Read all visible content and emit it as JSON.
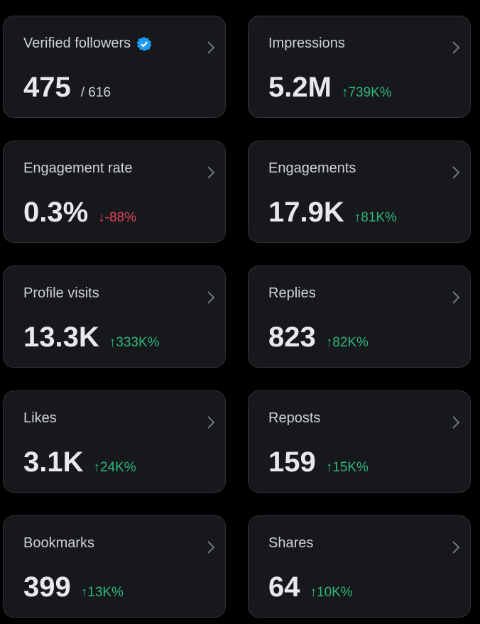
{
  "cards": [
    {
      "label": "Verified followers",
      "value": "475",
      "total": "/ 616",
      "verified": true
    },
    {
      "label": "Impressions",
      "value": "5.2M",
      "change": "↑739K%",
      "color": "#2fb67a"
    },
    {
      "label": "Engagement rate",
      "value": "0.3%",
      "change": "↓-88%",
      "color": "#e0445a"
    },
    {
      "label": "Engagements",
      "value": "17.9K",
      "change": "↑81K%",
      "color": "#2fb67a"
    },
    {
      "label": "Profile visits",
      "value": "13.3K",
      "change": "↑333K%",
      "color": "#2fb67a"
    },
    {
      "label": "Replies",
      "value": "823",
      "change": "↑82K%",
      "color": "#2fb67a"
    },
    {
      "label": "Likes",
      "value": "3.1K",
      "change": "↑24K%",
      "color": "#2fb67a"
    },
    {
      "label": "Reposts",
      "value": "159",
      "change": "↑15K%",
      "color": "#2fb67a"
    },
    {
      "label": "Bookmarks",
      "value": "399",
      "change": "↑13K%",
      "color": "#2fb67a"
    },
    {
      "label": "Shares",
      "value": "64",
      "change": "↑10K%",
      "color": "#2fb67a"
    }
  ]
}
